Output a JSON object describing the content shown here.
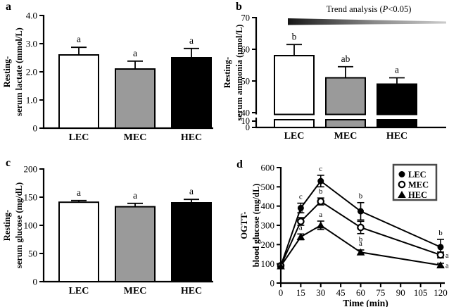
{
  "panels": {
    "a": {
      "letter": "a"
    },
    "b": {
      "letter": "b"
    },
    "c": {
      "letter": "c"
    },
    "d": {
      "letter": "d"
    }
  },
  "colors": {
    "white_bar": "#ffffff",
    "gray_bar": "#9a9a9a",
    "black_bar": "#000000",
    "axis": "#000000",
    "legend_border": "#4a4a4a",
    "trend_dark": "#161616",
    "trend_light": "#cccccc"
  },
  "chart_data": [
    {
      "id": "a",
      "type": "bar",
      "ylabel_lines": [
        "Resting-",
        "serum lactate (mmol/L)"
      ],
      "categories": [
        "LEC",
        "MEC",
        "HEC"
      ],
      "values": [
        2.6,
        2.1,
        2.5
      ],
      "errors": [
        0.27,
        0.28,
        0.33
      ],
      "sig_labels": [
        "a",
        "a",
        "a"
      ],
      "bar_colors": [
        "#ffffff",
        "#9a9a9a",
        "#000000"
      ],
      "ylim": [
        0,
        4
      ],
      "yticks": [
        {
          "v": 0,
          "l": "0"
        },
        {
          "v": 1,
          "l": "1.0"
        },
        {
          "v": 2,
          "l": "2.0"
        },
        {
          "v": 3,
          "l": "3.0"
        },
        {
          "v": 4,
          "l": "4.0"
        }
      ]
    },
    {
      "id": "b",
      "type": "bar_broken",
      "ylabel_lines": [
        "Resting-",
        "serum ammonia (μmol/L)"
      ],
      "categories": [
        "LEC",
        "MEC",
        "HEC"
      ],
      "values": [
        58,
        51,
        49
      ],
      "errors": [
        3.5,
        3.5,
        2
      ],
      "sig_labels": [
        "b",
        "ab",
        "a"
      ],
      "bar_colors": [
        "#ffffff",
        "#9a9a9a",
        "#000000"
      ],
      "axis_break": {
        "lower": [
          0,
          10
        ],
        "upper": [
          40,
          70
        ]
      },
      "yticks_lower": [
        {
          "v": 0,
          "l": "0"
        },
        {
          "v": 10,
          "l": "10"
        }
      ],
      "yticks_upper": [
        {
          "v": 40,
          "l": "40"
        },
        {
          "v": 50,
          "l": "50"
        },
        {
          "v": 60,
          "l": "60"
        },
        {
          "v": 70,
          "l": "70"
        }
      ],
      "trend": {
        "prefix": "Trend analysis (",
        "italic": "P",
        "suffix": "<0.05)"
      }
    },
    {
      "id": "c",
      "type": "bar",
      "ylabel_lines": [
        "Resting-",
        "serum glucose (mg/dL)"
      ],
      "categories": [
        "LEC",
        "MEC",
        "HEC"
      ],
      "values": [
        141,
        133,
        140
      ],
      "errors": [
        3,
        6,
        6
      ],
      "sig_labels": [
        "a",
        "a",
        "a"
      ],
      "bar_colors": [
        "#ffffff",
        "#9a9a9a",
        "#000000"
      ],
      "ylim": [
        0,
        200
      ],
      "yticks": [
        {
          "v": 0,
          "l": "0"
        },
        {
          "v": 50,
          "l": "50"
        },
        {
          "v": 100,
          "l": "100"
        },
        {
          "v": 150,
          "l": "150"
        },
        {
          "v": 200,
          "l": "200"
        }
      ]
    },
    {
      "id": "d",
      "type": "line",
      "ylabel_lines": [
        "OGTT-",
        "blood glucose (mg/dL)"
      ],
      "xlabel": "Time (min)",
      "ylim": [
        0,
        600
      ],
      "xlim": [
        0,
        120
      ],
      "yticks": [
        {
          "v": 0,
          "l": "0"
        },
        {
          "v": 100,
          "l": "100"
        },
        {
          "v": 200,
          "l": "200"
        },
        {
          "v": 300,
          "l": "300"
        },
        {
          "v": 400,
          "l": "400"
        },
        {
          "v": 500,
          "l": "500"
        },
        {
          "v": 600,
          "l": "600"
        }
      ],
      "xticks": [
        {
          "v": 0,
          "l": "0"
        },
        {
          "v": 15,
          "l": "15"
        },
        {
          "v": 30,
          "l": "30"
        },
        {
          "v": 45,
          "l": "45"
        },
        {
          "v": 60,
          "l": "60"
        },
        {
          "v": 75,
          "l": "75"
        },
        {
          "v": 90,
          "l": "90"
        },
        {
          "v": 105,
          "l": "105"
        },
        {
          "v": 120,
          "l": "120"
        }
      ],
      "series": [
        {
          "name": "LEC",
          "marker": "circle-filled",
          "points": [
            {
              "x": 0,
              "y": 90,
              "e": 5
            },
            {
              "x": 15,
              "y": 390,
              "e": 25,
              "label": "c",
              "pos": "above"
            },
            {
              "x": 30,
              "y": 530,
              "e": 30,
              "label": "c",
              "pos": "above"
            },
            {
              "x": 60,
              "y": 373,
              "e": 45,
              "label": "b",
              "pos": "above"
            },
            {
              "x": 120,
              "y": 187,
              "e": 40,
              "label": "b",
              "pos": "above"
            }
          ]
        },
        {
          "name": "MEC",
          "marker": "circle-open",
          "points": [
            {
              "x": 0,
              "y": 90,
              "e": 5
            },
            {
              "x": 15,
              "y": 320,
              "e": 20,
              "label": "b",
              "pos": "above"
            },
            {
              "x": 30,
              "y": 424,
              "e": 18,
              "label": "b",
              "pos": "above"
            },
            {
              "x": 60,
              "y": 289,
              "e": 32,
              "label": "b",
              "pos": "below"
            },
            {
              "x": 120,
              "y": 146,
              "e": 15,
              "label": "ab",
              "pos": "right"
            }
          ]
        },
        {
          "name": "HEC",
          "marker": "triangle-filled",
          "points": [
            {
              "x": 0,
              "y": 88,
              "e": 5
            },
            {
              "x": 15,
              "y": 240,
              "e": 15,
              "label": "a",
              "pos": "above"
            },
            {
              "x": 30,
              "y": 300,
              "e": 22,
              "label": "a",
              "pos": "above"
            },
            {
              "x": 60,
              "y": 160,
              "e": 12,
              "label": "a",
              "pos": "above"
            },
            {
              "x": 120,
              "y": 93,
              "e": 10,
              "label": "a",
              "pos": "right"
            }
          ]
        }
      ],
      "legend": {
        "position": "top-right",
        "items": [
          {
            "marker": "circle-filled",
            "label": "LEC"
          },
          {
            "marker": "circle-open",
            "label": "MEC"
          },
          {
            "marker": "triangle-filled",
            "label": "HEC"
          }
        ]
      }
    }
  ]
}
